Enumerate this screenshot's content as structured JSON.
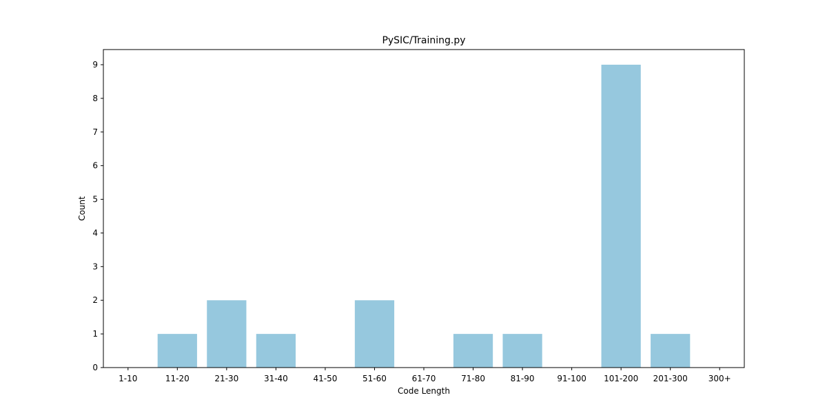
{
  "chart_data": {
    "type": "bar",
    "title": "PySIC/Training.py",
    "xlabel": "Code Length",
    "ylabel": "Count",
    "categories": [
      "1-10",
      "11-20",
      "21-30",
      "31-40",
      "41-50",
      "51-60",
      "61-70",
      "71-80",
      "81-90",
      "91-100",
      "101-200",
      "201-300",
      "300+"
    ],
    "values": [
      0,
      1,
      2,
      1,
      0,
      2,
      0,
      1,
      1,
      0,
      9,
      1,
      0
    ],
    "ylim": [
      0,
      9.45
    ],
    "yticks": [
      0,
      1,
      2,
      3,
      4,
      5,
      6,
      7,
      8,
      9
    ],
    "bar_color": "#96c8de",
    "grid": false,
    "legend": "none"
  }
}
